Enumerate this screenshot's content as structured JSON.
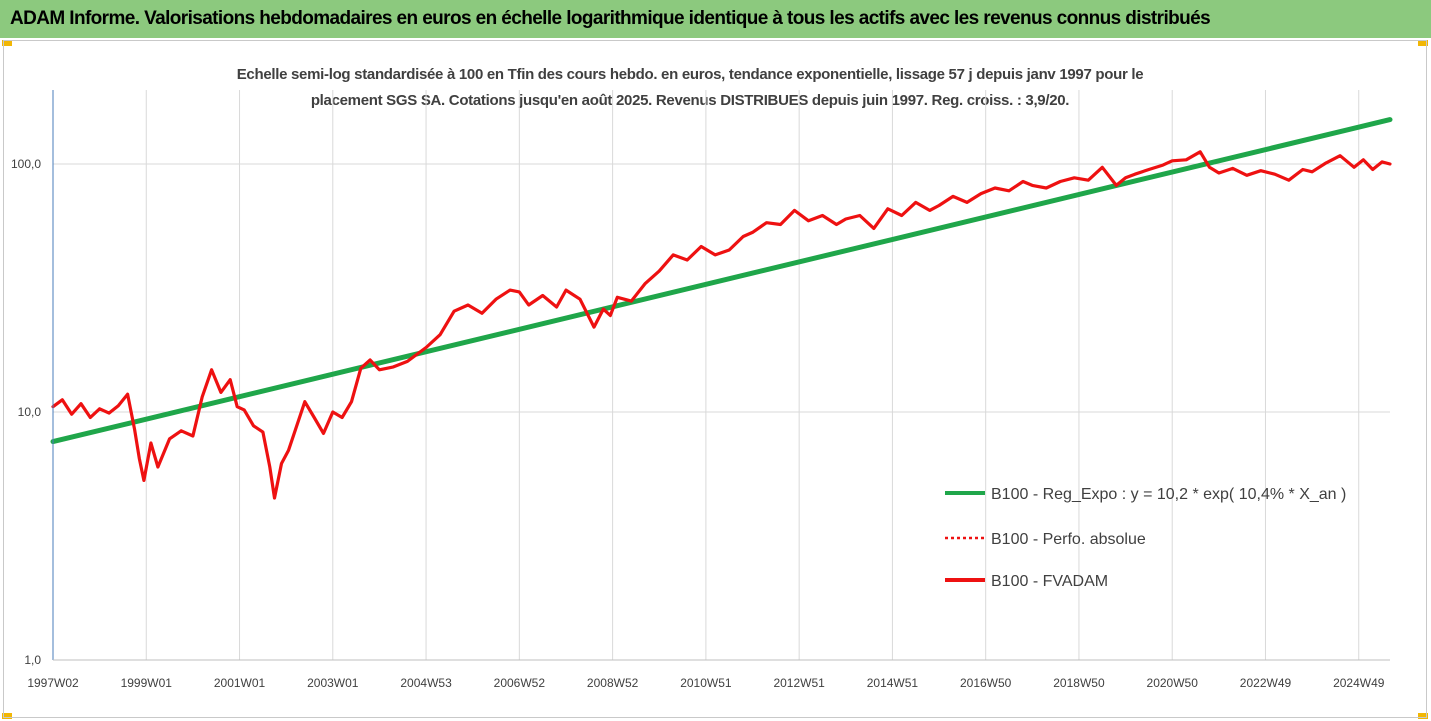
{
  "header": {
    "title": "ADAM Informe. Valorisations hebdomadaires en euros en échelle logarithmique identique à tous les actifs avec les revenus connus distribués"
  },
  "colors": {
    "header_bg": "#8cc97e",
    "corner_marks": "#f2b705",
    "regression": "#1fa64a",
    "fvadam": "#ee1111",
    "axis": "#4a7ebb",
    "grid": "#d9d9d9"
  },
  "chart_data": {
    "type": "line",
    "title_lines": [
      "Echelle semi-log standardisée à 100 en Tfin des cours hebdo. en euros, tendance exponentielle, lissage 57 j depuis janv 1997 pour le",
      "placement SGS SA. Cotations jusqu'en août 2025. Revenus DISTRIBUES depuis juin 1997. Reg. croiss. : 3,9/20."
    ],
    "y_scale": "log",
    "ylim": [
      1,
      200
    ],
    "y_ticks": [
      {
        "value": 1,
        "label": "1,0"
      },
      {
        "value": 10,
        "label": "10,0"
      },
      {
        "value": 100,
        "label": "100,0"
      }
    ],
    "xlim": [
      1997.0,
      2025.67
    ],
    "x_ticks": [
      {
        "value": 1997.0,
        "label": "1997W02"
      },
      {
        "value": 1999.0,
        "label": "1999W01"
      },
      {
        "value": 2001.0,
        "label": "2001W01"
      },
      {
        "value": 2003.0,
        "label": "2003W01"
      },
      {
        "value": 2005.0,
        "label": "2004W53"
      },
      {
        "value": 2007.0,
        "label": "2006W52"
      },
      {
        "value": 2009.0,
        "label": "2008W52"
      },
      {
        "value": 2011.0,
        "label": "2010W51"
      },
      {
        "value": 2013.0,
        "label": "2012W51"
      },
      {
        "value": 2015.0,
        "label": "2014W51"
      },
      {
        "value": 2017.0,
        "label": "2016W50"
      },
      {
        "value": 2019.0,
        "label": "2018W50"
      },
      {
        "value": 2021.0,
        "label": "2020W50"
      },
      {
        "value": 2023.0,
        "label": "2022W49"
      },
      {
        "value": 2025.0,
        "label": "2024W49"
      }
    ],
    "grid": "vertical",
    "legend_position": "bottom-right",
    "series": [
      {
        "name": "B100 - Reg_Expo : y = 10,2 * exp( 10,4% *  X_an )",
        "style": "solid",
        "color": "#1fa64a",
        "x": [
          1997.0,
          2025.67
        ],
        "y": [
          7.6,
          151
        ]
      },
      {
        "name": "B100 - Perfo. absolue",
        "style": "dotted",
        "color": "#ee1111",
        "x": [],
        "y": []
      },
      {
        "name": "B100 - FVADAM",
        "style": "solid",
        "color": "#ee1111",
        "x": [
          1997.0,
          1997.2,
          1997.4,
          1997.6,
          1997.8,
          1998.0,
          1998.2,
          1998.4,
          1998.6,
          1998.75,
          1998.85,
          1998.95,
          1999.1,
          1999.25,
          1999.5,
          1999.75,
          2000.0,
          2000.2,
          2000.4,
          2000.6,
          2000.8,
          2000.95,
          2001.1,
          2001.3,
          2001.5,
          2001.65,
          2001.75,
          2001.9,
          2002.05,
          2002.2,
          2002.4,
          2002.6,
          2002.8,
          2003.0,
          2003.2,
          2003.4,
          2003.6,
          2003.8,
          2004.0,
          2004.3,
          2004.6,
          2005.0,
          2005.3,
          2005.6,
          2005.9,
          2006.2,
          2006.5,
          2006.8,
          2007.0,
          2007.2,
          2007.5,
          2007.8,
          2008.0,
          2008.3,
          2008.6,
          2008.8,
          2008.95,
          2009.1,
          2009.4,
          2009.7,
          2010.0,
          2010.3,
          2010.6,
          2010.9,
          2011.2,
          2011.5,
          2011.8,
          2012.0,
          2012.3,
          2012.6,
          2012.9,
          2013.2,
          2013.5,
          2013.8,
          2014.0,
          2014.3,
          2014.6,
          2014.9,
          2015.2,
          2015.5,
          2015.8,
          2016.0,
          2016.3,
          2016.6,
          2016.9,
          2017.2,
          2017.5,
          2017.8,
          2018.0,
          2018.3,
          2018.6,
          2018.9,
          2019.2,
          2019.5,
          2019.8,
          2020.0,
          2020.2,
          2020.5,
          2020.8,
          2021.0,
          2021.3,
          2021.6,
          2021.8,
          2022.0,
          2022.3,
          2022.6,
          2022.9,
          2023.2,
          2023.5,
          2023.8,
          2024.0,
          2024.3,
          2024.6,
          2024.9,
          2025.1,
          2025.3,
          2025.5,
          2025.67
        ],
        "y": [
          10.5,
          11.2,
          9.8,
          10.8,
          9.5,
          10.3,
          9.9,
          10.6,
          11.8,
          8.5,
          6.5,
          5.3,
          7.5,
          6.0,
          7.8,
          8.4,
          8.0,
          11.5,
          14.8,
          12.0,
          13.5,
          10.5,
          10.2,
          8.8,
          8.3,
          6.0,
          4.5,
          6.2,
          7.0,
          8.5,
          11.0,
          9.5,
          8.2,
          10.0,
          9.5,
          11.0,
          15.0,
          16.2,
          14.8,
          15.2,
          16.0,
          18.2,
          20.5,
          25.5,
          27.0,
          25.0,
          28.5,
          31.0,
          30.5,
          27.0,
          29.5,
          26.5,
          31.0,
          28.5,
          22.0,
          26.0,
          24.5,
          29.0,
          28.0,
          33.0,
          37.0,
          43.0,
          41.0,
          46.5,
          43.0,
          45.0,
          51.0,
          53.0,
          58.0,
          57.0,
          65.0,
          59.0,
          62.0,
          57.0,
          60.0,
          62.0,
          55.0,
          66.0,
          62.0,
          70.0,
          65.0,
          68.0,
          74.0,
          70.0,
          76.0,
          80.0,
          78.0,
          85.0,
          82.0,
          80.0,
          85.0,
          88.0,
          86.0,
          97.0,
          82.0,
          88.0,
          91.0,
          95.0,
          99.0,
          103.0,
          104.0,
          112.0,
          97.0,
          92.0,
          96.0,
          90.0,
          94.0,
          91.0,
          86.0,
          95.0,
          93.0,
          101.0,
          108.0,
          97.0,
          104.0,
          95.0,
          102.0,
          100.0
        ]
      }
    ]
  }
}
